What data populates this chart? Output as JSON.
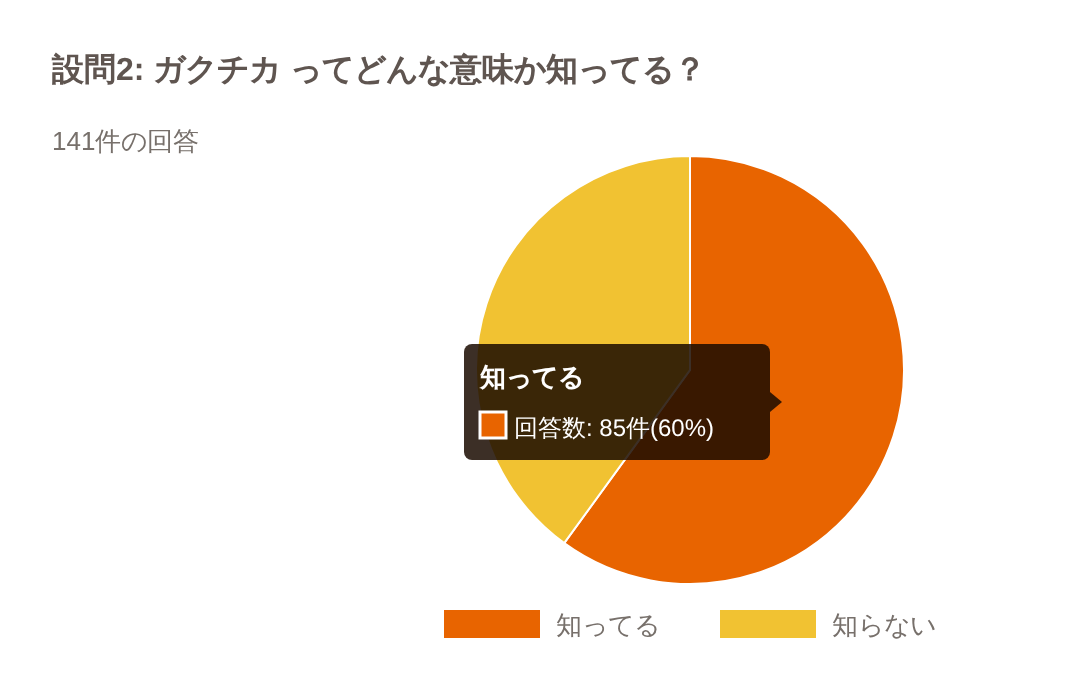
{
  "chart_data": {
    "type": "pie",
    "title": "設問2: ガクチカ ってどんな意味か知ってる？",
    "subtitle": "141件の回答",
    "categories": [
      "知ってる",
      "知らない"
    ],
    "values": [
      60,
      40
    ],
    "colors": [
      "#e86400",
      "#f1c232"
    ],
    "legend": "bottom",
    "annotations": [
      "知ってる",
      "回答数: 85件(60%)"
    ]
  }
}
